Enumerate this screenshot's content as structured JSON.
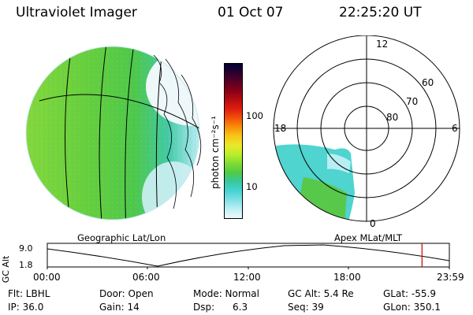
{
  "header": {
    "instrument": "Ultraviolet Imager",
    "date": "01 Oct 07",
    "time": "22:25:20 UT"
  },
  "colorbar": {
    "unit": "photon cm⁻²s⁻¹",
    "ticks": [
      "100",
      "10"
    ],
    "colors": [
      "#000033",
      "#2a0030",
      "#5a0024",
      "#8a0018",
      "#b80d10",
      "#e01e10",
      "#f2520a",
      "#f9910a",
      "#f7c81a",
      "#e9e92a",
      "#b9ee2a",
      "#7fdc33",
      "#4fca45",
      "#38c8a0",
      "#46d4d2",
      "#7fe0e6",
      "#bdf0f4",
      "#eef8fa"
    ]
  },
  "geo_panel": {
    "label": "Geographic Lat/Lon"
  },
  "polar_panel": {
    "label": "Apex MLat/MLT",
    "mlt_labels": {
      "top": "12",
      "right": "6",
      "bottom": "0",
      "left": "18"
    },
    "mlat_labels": [
      "60",
      "70",
      "80"
    ]
  },
  "altitude_plot": {
    "axis_label": "GC Alt",
    "y_ticks": [
      "9.0",
      "1.8"
    ],
    "x_ticks": [
      "00:00",
      "06:00",
      "12:00",
      "18:00",
      "23:59"
    ],
    "current_time_fraction": 0.932,
    "marker_color": "#cc0000"
  },
  "footer": {
    "col1": [
      "Flt: LBHL",
      "IP: 36.0"
    ],
    "col2": [
      "Door: Open",
      "Gain: 14"
    ],
    "col3": [
      "Mode: Normal",
      "Dsp:      6.3"
    ],
    "col4": [
      "GC Alt: 5.4 Re",
      "Seq: 39"
    ],
    "col5": [
      "GLat: -55.9",
      "GLon: 350.1"
    ]
  }
}
